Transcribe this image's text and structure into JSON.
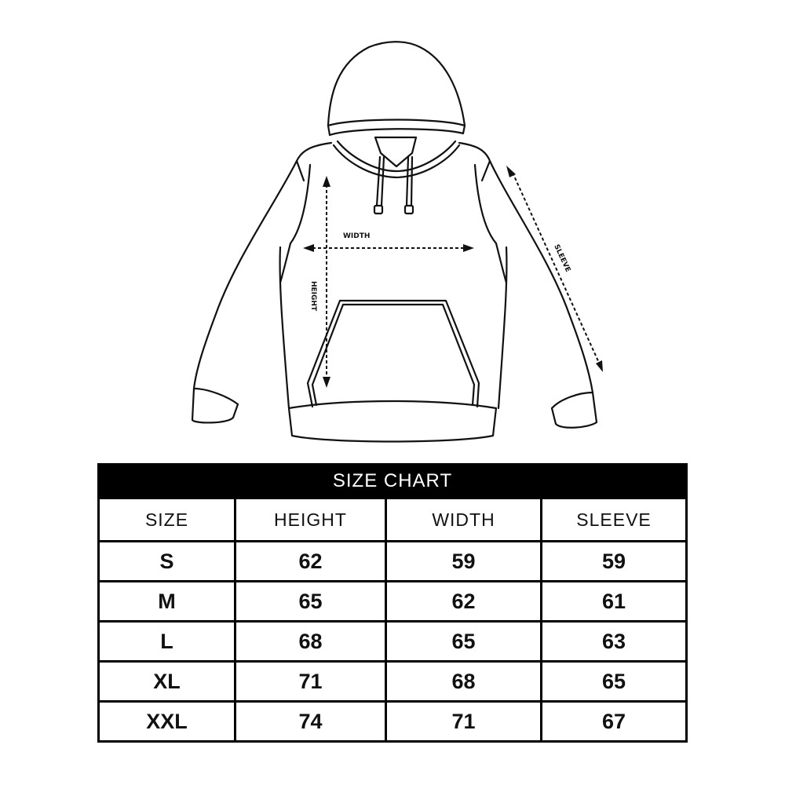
{
  "diagram": {
    "labels": {
      "width": "WIDTH",
      "height": "HEIGHT",
      "sleeve": "SLEEVE"
    }
  },
  "size_chart": {
    "title": "SIZE CHART",
    "columns": [
      "SIZE",
      "HEIGHT",
      "WIDTH",
      "SLEEVE"
    ],
    "rows": [
      [
        "S",
        "62",
        "59",
        "59"
      ],
      [
        "M",
        "65",
        "62",
        "61"
      ],
      [
        "L",
        "68",
        "65",
        "63"
      ],
      [
        "XL",
        "71",
        "68",
        "65"
      ],
      [
        "XXL",
        "74",
        "71",
        "67"
      ]
    ]
  }
}
